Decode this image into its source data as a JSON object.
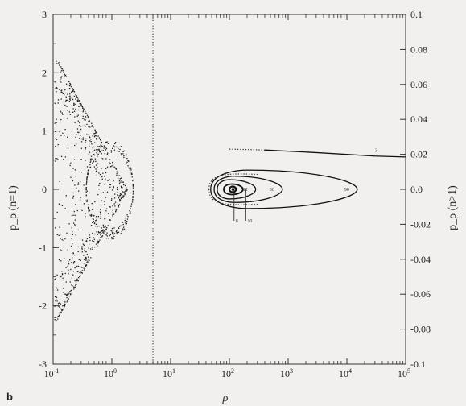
{
  "chart_data": {
    "type": "scatter",
    "panel_label": "b",
    "xlabel": "ρ",
    "ylabel_left": "p_ρ (n=1)",
    "ylabel_right": "p_ρ (n>1)",
    "x_scale": "log",
    "xlim": [
      0.1,
      100000
    ],
    "x_ticks": [
      {
        "value": 0.1,
        "base": "10",
        "exp": "-1"
      },
      {
        "value": 1,
        "base": "10",
        "exp": "0"
      },
      {
        "value": 10,
        "base": "10",
        "exp": "1"
      },
      {
        "value": 100,
        "base": "10",
        "exp": "2"
      },
      {
        "value": 1000,
        "base": "10",
        "exp": "3"
      },
      {
        "value": 10000,
        "base": "10",
        "exp": "4"
      },
      {
        "value": 100000,
        "base": "10",
        "exp": "5"
      }
    ],
    "ylim_left": [
      -3,
      3
    ],
    "y_ticks_left": [
      "-3",
      "-2",
      "-1",
      "0",
      "1",
      "2",
      "3"
    ],
    "ylim_right": [
      -0.1,
      0.1
    ],
    "y_ticks_right": [
      "-0.1",
      "-0.08",
      "-0.06",
      "-0.04",
      "-0.02",
      "0.0",
      "0.02",
      "0.04",
      "0.06",
      "0.08",
      "0.1"
    ],
    "vertical_dotted_line_x": 5,
    "scatter_n1": {
      "description_shape": "chevron",
      "tip": {
        "x": 1.8,
        "y": 0
      },
      "upper_arm": [
        {
          "x": 0.12,
          "y": 2.2
        },
        {
          "x": 1.8,
          "y": 0
        }
      ],
      "lower_arm": [
        {
          "x": 0.12,
          "y": -2.2
        },
        {
          "x": 1.8,
          "y": 0
        }
      ],
      "dense_ring_center": {
        "x": 0.9,
        "y": 0
      },
      "point_count": 1200
    },
    "contours_right_axis": [
      {
        "label": "8",
        "levels": "inner",
        "points": [
          [
            100,
            0
          ],
          [
            115,
            0.0016
          ],
          [
            130,
            0
          ],
          [
            115,
            -0.0016
          ],
          [
            100,
            0
          ]
        ]
      },
      {
        "label": "10",
        "levels": "inner2",
        "points": [
          [
            80,
            0
          ],
          [
            110,
            0.003
          ],
          [
            170,
            0
          ],
          [
            110,
            -0.003
          ],
          [
            80,
            0
          ]
        ]
      },
      {
        "label": "12",
        "levels": "mid",
        "points": [
          [
            62,
            0
          ],
          [
            100,
            0.0055
          ],
          [
            280,
            0
          ],
          [
            100,
            -0.0055
          ],
          [
            62,
            0
          ]
        ]
      },
      {
        "label": "30",
        "levels": "outer",
        "points": [
          [
            55,
            0
          ],
          [
            120,
            0.0075
          ],
          [
            800,
            0
          ],
          [
            120,
            -0.0075
          ],
          [
            55,
            0
          ]
        ]
      },
      {
        "label": "90",
        "levels": "outermost",
        "points": [
          [
            48,
            0
          ],
          [
            200,
            0.011
          ],
          [
            15000,
            0
          ],
          [
            200,
            -0.011
          ],
          [
            48,
            0
          ]
        ]
      }
    ],
    "dotted_contour": {
      "points": [
        [
          45,
          0
        ],
        [
          70,
          0.0075
        ],
        [
          300,
          0.008
        ],
        [
          300,
          -0.008
        ],
        [
          70,
          -0.0075
        ],
        [
          45,
          0
        ]
      ]
    },
    "line_3": {
      "label": "3",
      "points": [
        [
          400,
          0.0225
        ],
        [
          3000,
          0.021
        ],
        [
          30000,
          0.019
        ],
        [
          100000,
          0.0185
        ]
      ],
      "dotted_start": [
        [
          100,
          0.023
        ],
        [
          400,
          0.0225
        ]
      ]
    },
    "vertical_markers": [
      {
        "label": "8",
        "x": 120,
        "y_from": 0,
        "y_to": -0.018
      },
      {
        "label": "10",
        "x": 190,
        "y_from": 0,
        "y_to": -0.018
      }
    ]
  }
}
